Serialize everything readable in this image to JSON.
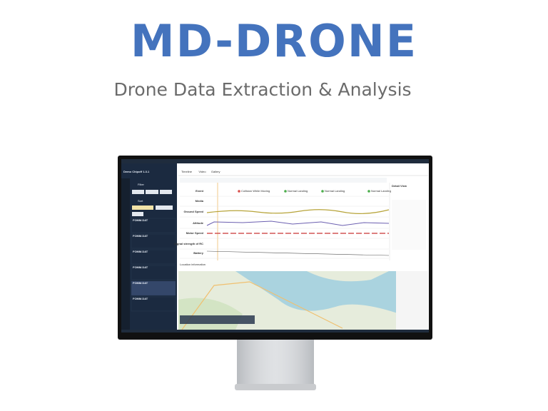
{
  "header": {
    "title": "MD-DRONE",
    "subtitle": "Drone Data Extraction & Analysis"
  },
  "app": {
    "title": "Demo Chipoff 1.3.1",
    "sidebar": {
      "filter": "Filter",
      "sort": "Sort",
      "files": [
        "FOMM.DAT",
        "FOMM.DAT",
        "FOMM.DAT",
        "FOMM.DAT",
        "FOMM.DAT",
        "FOMM.DAT"
      ]
    },
    "tabs": [
      "Timeline",
      "Video",
      "Gallery"
    ],
    "rows": [
      "Event",
      "Media",
      "Ground Speed",
      "Altitude",
      "Motor Speed",
      "Signal strength of RC",
      "Battery"
    ],
    "events": [
      "Collision While Moving",
      "Normal Landing",
      "Normal Landing",
      "Normal Landing"
    ],
    "detail": "Detail View",
    "location": "Location information"
  }
}
